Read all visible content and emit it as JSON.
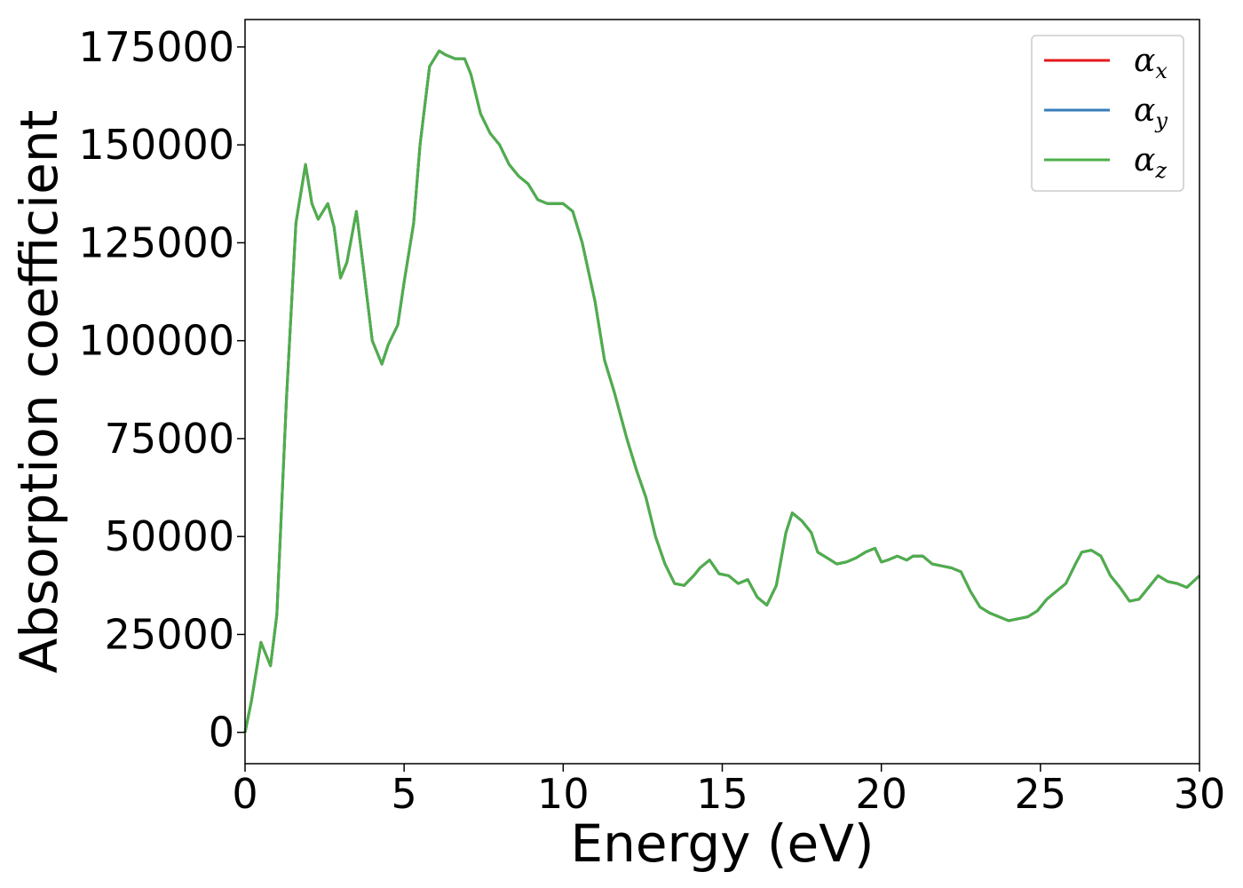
{
  "chart_data": {
    "type": "line",
    "title": "",
    "xlabel": "Energy (eV)",
    "ylabel": "Absorption coefficient",
    "xlim": [
      0,
      30
    ],
    "ylim": [
      -8000,
      182000
    ],
    "x_ticks": [
      0,
      5,
      10,
      15,
      20,
      25,
      30
    ],
    "x_tick_labels": [
      "0",
      "5",
      "10",
      "15",
      "20",
      "25",
      "30"
    ],
    "y_ticks": [
      0,
      25000,
      50000,
      75000,
      100000,
      125000,
      150000,
      175000
    ],
    "y_tick_labels": [
      "0",
      "25000",
      "50000",
      "75000",
      "100000",
      "125000",
      "150000",
      "175000"
    ],
    "grid": false,
    "legend_position": "top-right",
    "legend": [
      {
        "symbol": "α",
        "subscript": "x",
        "color": "#e41a1c"
      },
      {
        "symbol": "α",
        "subscript": "y",
        "color": "#377eb8"
      },
      {
        "symbol": "α",
        "subscript": "z",
        "color": "#4daf4a"
      }
    ],
    "x": [
      0,
      0.2,
      0.5,
      0.8,
      1.0,
      1.3,
      1.6,
      1.9,
      2.1,
      2.3,
      2.6,
      2.8,
      3.0,
      3.2,
      3.5,
      3.7,
      4.0,
      4.3,
      4.5,
      4.8,
      5.0,
      5.3,
      5.5,
      5.8,
      6.1,
      6.3,
      6.6,
      6.9,
      7.1,
      7.4,
      7.7,
      8.0,
      8.3,
      8.6,
      8.9,
      9.2,
      9.5,
      9.8,
      10.0,
      10.3,
      10.6,
      11.0,
      11.3,
      11.6,
      12.0,
      12.3,
      12.6,
      12.9,
      13.2,
      13.5,
      13.8,
      14.1,
      14.3,
      14.6,
      14.9,
      15.2,
      15.5,
      15.8,
      16.1,
      16.4,
      16.7,
      17.0,
      17.2,
      17.5,
      17.8,
      18.0,
      18.3,
      18.6,
      18.9,
      19.2,
      19.5,
      19.8,
      20.0,
      20.2,
      20.5,
      20.8,
      21.0,
      21.3,
      21.6,
      21.9,
      22.2,
      22.5,
      22.8,
      23.1,
      23.4,
      23.7,
      24.0,
      24.3,
      24.6,
      24.9,
      25.2,
      25.5,
      25.8,
      26.1,
      26.3,
      26.6,
      26.9,
      27.2,
      27.5,
      27.8,
      28.1,
      28.4,
      28.7,
      29.0,
      29.3,
      29.6,
      30.0
    ],
    "series": [
      {
        "values": [
          0,
          8000,
          23000,
          17000,
          30000,
          85000,
          130000,
          145000,
          135000,
          131000,
          135000,
          129000,
          116000,
          120000,
          133000,
          120000,
          100000,
          94000,
          99000,
          104000,
          115000,
          130000,
          150000,
          170000,
          174000,
          173000,
          172000,
          172000,
          168000,
          158000,
          153000,
          150000,
          145000,
          142000,
          140000,
          136000,
          135000,
          135000,
          135000,
          133000,
          125000,
          110000,
          95000,
          87000,
          75000,
          67000,
          60000,
          50000,
          43000,
          38000,
          37500,
          40000,
          42000,
          44000,
          40500,
          40000,
          38000,
          39000,
          34500,
          32500,
          37500,
          51000,
          56000,
          54000,
          51000,
          46000,
          44500,
          43000,
          43500,
          44500,
          46000,
          47000,
          43500,
          44000,
          45000,
          44000,
          45000,
          45000,
          43000,
          42500,
          42000,
          41000,
          36000,
          32000,
          30500,
          29500,
          28500,
          29000,
          29500,
          31000,
          34000,
          36000,
          38000,
          43000,
          46000,
          46500,
          45000,
          40000,
          37000,
          33500,
          34000,
          37000,
          40000,
          38500,
          38000,
          37000,
          40000
        ]
      },
      {
        "values": [
          0,
          8000,
          23000,
          17000,
          30000,
          85000,
          130000,
          145000,
          135000,
          131000,
          135000,
          129000,
          116000,
          120000,
          133000,
          120000,
          100000,
          94000,
          99000,
          104000,
          115000,
          130000,
          150000,
          170000,
          174000,
          173000,
          172000,
          172000,
          168000,
          158000,
          153000,
          150000,
          145000,
          142000,
          140000,
          136000,
          135000,
          135000,
          135000,
          133000,
          125000,
          110000,
          95000,
          87000,
          75000,
          67000,
          60000,
          50000,
          43000,
          38000,
          37500,
          40000,
          42000,
          44000,
          40500,
          40000,
          38000,
          39000,
          34500,
          32500,
          37500,
          51000,
          56000,
          54000,
          51000,
          46000,
          44500,
          43000,
          43500,
          44500,
          46000,
          47000,
          43500,
          44000,
          45000,
          44000,
          45000,
          45000,
          43000,
          42500,
          42000,
          41000,
          36000,
          32000,
          30500,
          29500,
          28500,
          29000,
          29500,
          31000,
          34000,
          36000,
          38000,
          43000,
          46000,
          46500,
          45000,
          40000,
          37000,
          33500,
          34000,
          37000,
          40000,
          38500,
          38000,
          37000,
          40000
        ]
      },
      {
        "values": [
          0,
          8000,
          23000,
          17000,
          30000,
          85000,
          130000,
          145000,
          135000,
          131000,
          135000,
          129000,
          116000,
          120000,
          133000,
          120000,
          100000,
          94000,
          99000,
          104000,
          115000,
          130000,
          150000,
          170000,
          174000,
          173000,
          172000,
          172000,
          168000,
          158000,
          153000,
          150000,
          145000,
          142000,
          140000,
          136000,
          135000,
          135000,
          135000,
          133000,
          125000,
          110000,
          95000,
          87000,
          75000,
          67000,
          60000,
          50000,
          43000,
          38000,
          37500,
          40000,
          42000,
          44000,
          40500,
          40000,
          38000,
          39000,
          34500,
          32500,
          37500,
          51000,
          56000,
          54000,
          51000,
          46000,
          44500,
          43000,
          43500,
          44500,
          46000,
          47000,
          43500,
          44000,
          45000,
          44000,
          45000,
          45000,
          43000,
          42500,
          42000,
          41000,
          36000,
          32000,
          30500,
          29500,
          28500,
          29000,
          29500,
          31000,
          34000,
          36000,
          38000,
          43000,
          46000,
          46500,
          45000,
          40000,
          37000,
          33500,
          34000,
          37000,
          40000,
          38500,
          38000,
          37000,
          40000
        ]
      }
    ]
  }
}
